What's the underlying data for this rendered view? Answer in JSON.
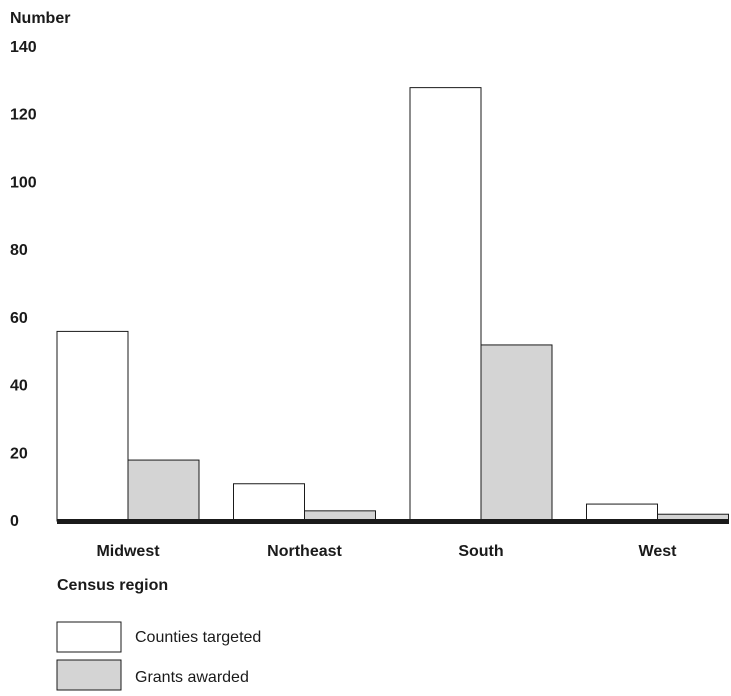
{
  "chart_data": {
    "type": "bar",
    "ylabel": "Number",
    "xlabel": "Census region",
    "categories": [
      "Midwest",
      "Northeast",
      "South",
      "West"
    ],
    "series": [
      {
        "name": "Counties targeted",
        "values": [
          56,
          11,
          128,
          5
        ],
        "color": "#ffffff"
      },
      {
        "name": "Grants awarded",
        "values": [
          18,
          3,
          52,
          2
        ],
        "color": "#d4d4d4"
      }
    ],
    "ylim": [
      0,
      140
    ],
    "yticks": [
      "0",
      "20",
      "40",
      "60",
      "80",
      "100",
      "120",
      "140"
    ],
    "grid": false,
    "legend_position": "bottom-left"
  }
}
